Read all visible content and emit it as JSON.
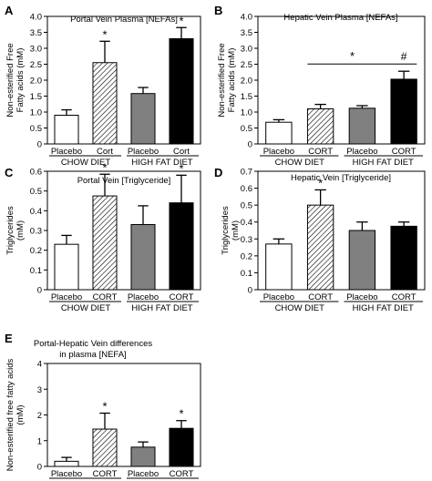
{
  "chart_data": [
    {
      "panel": "A",
      "type": "bar",
      "title": "Portal Vein Plasma [NEFAs]",
      "ylabel": "Non-esterified Free Fatty acids (mM)",
      "ylim": [
        0,
        4
      ],
      "yticks": [
        "0",
        "0.5",
        "1.0",
        "1.5",
        "2.0",
        "2.5",
        "3.0",
        "3.5",
        "4.0"
      ],
      "categories": [
        "Placebo",
        "Cort",
        "Placebo",
        "Cort"
      ],
      "groups": [
        "CHOW DIET",
        "HIGH FAT DIET"
      ],
      "values": [
        0.9,
        2.55,
        1.58,
        3.3
      ],
      "errors": [
        0.17,
        0.67,
        0.19,
        0.35
      ],
      "marks": [
        "*",
        "*"
      ],
      "mark_bars": [
        1,
        3
      ]
    },
    {
      "panel": "B",
      "type": "bar",
      "title": "Hepatic Vein Plasma [NEFAs]",
      "ylabel": "Non-esterified Free Fatty acids (mM)",
      "ylim": [
        0,
        4
      ],
      "yticks": [
        "0",
        "0.5",
        "1.0",
        "1.5",
        "2.0",
        "2.5",
        "3.0",
        "3.5",
        "4.0"
      ],
      "categories": [
        "Placebo",
        "CORT",
        "Placebo",
        "CORT"
      ],
      "groups": [
        "CHOW DIET",
        "HIGH FAT DIET"
      ],
      "values": [
        0.68,
        1.1,
        1.12,
        2.03
      ],
      "errors": [
        0.08,
        0.14,
        0.08,
        0.25
      ],
      "bracket_mark": "*",
      "hash_mark": "#"
    },
    {
      "panel": "C",
      "type": "bar",
      "title": "Portal Vein [Triglyceride]",
      "ylabel": "Triglycerides (mM)",
      "ylim": [
        0,
        0.6
      ],
      "yticks": [
        "0",
        "0.1",
        "0.2",
        "0.3",
        "0.4",
        "0.5",
        "0.6"
      ],
      "categories": [
        "Placebo",
        "CORT",
        "Placebo",
        "CORT"
      ],
      "groups": [
        "CHOW DIET",
        "HIGH FAT DIET"
      ],
      "values": [
        0.23,
        0.475,
        0.33,
        0.44
      ],
      "errors": [
        0.045,
        0.11,
        0.095,
        0.14
      ],
      "marks": [
        "*",
        "*"
      ],
      "mark_bars": [
        1,
        3
      ]
    },
    {
      "panel": "D",
      "type": "bar",
      "title": "Hepatic Vein [Triglyceride]",
      "ylabel": "Triglycerides (mM)",
      "ylim": [
        0,
        0.7
      ],
      "yticks": [
        "0",
        "0.1",
        "0.2",
        "0.3",
        "0.4",
        "0.5",
        "0.6",
        "0.7"
      ],
      "categories": [
        "Placebo",
        "CORT",
        "Placebo",
        "CORT"
      ],
      "groups": [
        "CHOW DIET",
        "HIGH FAT DIET"
      ],
      "values": [
        0.27,
        0.5,
        0.35,
        0.375
      ],
      "errors": [
        0.03,
        0.09,
        0.05,
        0.025
      ],
      "marks": [
        "*"
      ],
      "mark_bars": [
        1
      ]
    },
    {
      "panel": "E",
      "type": "bar",
      "title": "Portal-Hepatic Vein differences in plasma [NEFA]",
      "title_lines": [
        "Portal-Hepatic Vein differences",
        "in plasma [NEFA]"
      ],
      "ylabel": "Non-esterified free fatty acids (mM)",
      "ylim": [
        0,
        4
      ],
      "yticks": [
        "0",
        "1",
        "2",
        "3",
        "4"
      ],
      "categories": [
        "Placebo",
        "CORT",
        "Placebo",
        "CORT"
      ],
      "groups": [
        "CHOW DIET",
        "HIGH FAT DIET"
      ],
      "values": [
        0.2,
        1.45,
        0.75,
        1.48
      ],
      "errors": [
        0.15,
        0.62,
        0.2,
        0.3
      ],
      "marks": [
        "*",
        "*"
      ],
      "mark_bars": [
        1,
        3
      ]
    }
  ],
  "bar_styles": [
    "white",
    "hatch",
    "#808080",
    "#000000"
  ]
}
